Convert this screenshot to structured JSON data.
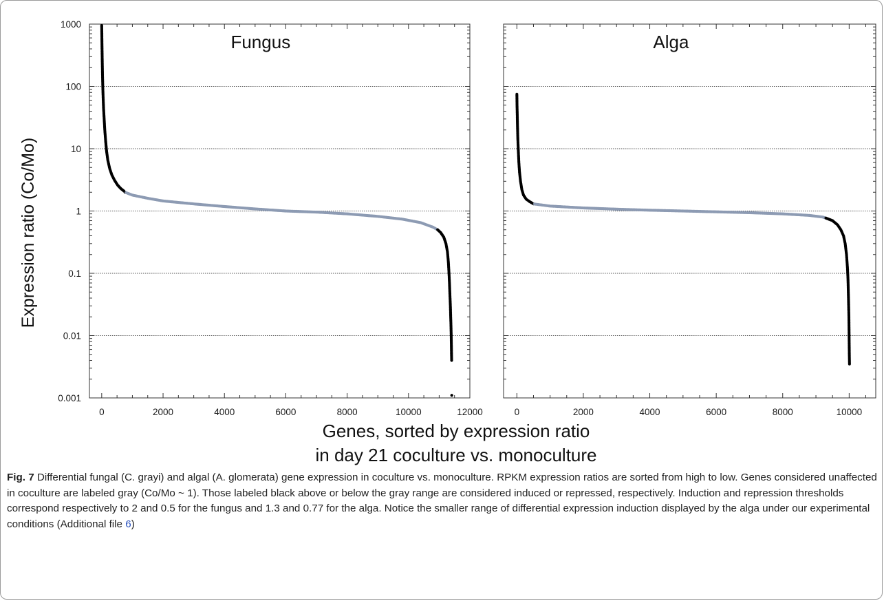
{
  "chart_data": [
    {
      "type": "scatter",
      "title": "Fungus",
      "ylabel": "Expression ratio (Co/Mo)",
      "y_scale": "log",
      "ylim": [
        0.001,
        1000
      ],
      "xlim": [
        -400,
        12000
      ],
      "x_ticks": [
        "0",
        "2000",
        "4000",
        "6000",
        "8000",
        "10000",
        "12000"
      ],
      "y_ticks": [
        "1000",
        "100",
        "10",
        "1",
        "0.1",
        "0.01",
        "0.001"
      ],
      "gridlines_y": [
        100,
        10,
        1,
        0.1,
        0.01
      ],
      "thresholds": {
        "induction": 2,
        "repression": 0.5
      },
      "colors": {
        "induced_repressed": "#000000",
        "unaffected": "#8d9bb3"
      },
      "points": [
        [
          0,
          950
        ],
        [
          5,
          650
        ],
        [
          10,
          420
        ],
        [
          18,
          250
        ],
        [
          25,
          160
        ],
        [
          35,
          100
        ],
        [
          45,
          70
        ],
        [
          60,
          45
        ],
        [
          80,
          30
        ],
        [
          100,
          20
        ],
        [
          130,
          13
        ],
        [
          160,
          9
        ],
        [
          200,
          6.5
        ],
        [
          260,
          4.8
        ],
        [
          330,
          3.8
        ],
        [
          420,
          3.1
        ],
        [
          520,
          2.6
        ],
        [
          620,
          2.3
        ],
        [
          720,
          2.1
        ],
        [
          760,
          2.0
        ],
        [
          1000,
          1.8
        ],
        [
          1500,
          1.6
        ],
        [
          2000,
          1.45
        ],
        [
          3000,
          1.3
        ],
        [
          4000,
          1.18
        ],
        [
          5000,
          1.08
        ],
        [
          6000,
          1.0
        ],
        [
          7000,
          0.96
        ],
        [
          8000,
          0.9
        ],
        [
          9000,
          0.82
        ],
        [
          9800,
          0.74
        ],
        [
          10400,
          0.65
        ],
        [
          10800,
          0.55
        ],
        [
          10950,
          0.5
        ],
        [
          11050,
          0.45
        ],
        [
          11150,
          0.38
        ],
        [
          11220,
          0.3
        ],
        [
          11270,
          0.22
        ],
        [
          11300,
          0.15
        ],
        [
          11320,
          0.1
        ],
        [
          11335,
          0.07
        ],
        [
          11350,
          0.045
        ],
        [
          11365,
          0.03
        ],
        [
          11375,
          0.02
        ],
        [
          11385,
          0.014
        ],
        [
          11392,
          0.01
        ],
        [
          11398,
          0.007
        ],
        [
          11402,
          0.005
        ],
        [
          11406,
          0.004
        ],
        [
          11410,
          0.0011
        ]
      ]
    },
    {
      "type": "scatter",
      "title": "Alga",
      "y_scale": "log",
      "ylim": [
        0.001,
        1000
      ],
      "xlim": [
        -400,
        10800
      ],
      "x_ticks": [
        "0",
        "2000",
        "4000",
        "6000",
        "8000",
        "10000"
      ],
      "gridlines_y": [
        100,
        10,
        1,
        0.1,
        0.01
      ],
      "thresholds": {
        "induction": 1.3,
        "repression": 0.77
      },
      "colors": {
        "induced_repressed": "#000000",
        "unaffected": "#8d9bb3"
      },
      "points": [
        [
          0,
          75
        ],
        [
          5,
          50
        ],
        [
          12,
          35
        ],
        [
          20,
          22
        ],
        [
          30,
          14
        ],
        [
          45,
          9
        ],
        [
          60,
          6
        ],
        [
          80,
          4.2
        ],
        [
          110,
          3
        ],
        [
          150,
          2.2
        ],
        [
          200,
          1.8
        ],
        [
          280,
          1.55
        ],
        [
          380,
          1.42
        ],
        [
          450,
          1.35
        ],
        [
          500,
          1.3
        ],
        [
          1000,
          1.2
        ],
        [
          2000,
          1.12
        ],
        [
          3000,
          1.07
        ],
        [
          4000,
          1.03
        ],
        [
          5000,
          1.0
        ],
        [
          6000,
          0.97
        ],
        [
          7000,
          0.94
        ],
        [
          8000,
          0.9
        ],
        [
          8800,
          0.85
        ],
        [
          9200,
          0.8
        ],
        [
          9300,
          0.77
        ],
        [
          9500,
          0.7
        ],
        [
          9650,
          0.6
        ],
        [
          9750,
          0.5
        ],
        [
          9830,
          0.4
        ],
        [
          9880,
          0.3
        ],
        [
          9920,
          0.2
        ],
        [
          9950,
          0.12
        ],
        [
          9965,
          0.08
        ],
        [
          9975,
          0.05
        ],
        [
          9985,
          0.03
        ],
        [
          9992,
          0.02
        ],
        [
          9997,
          0.012
        ],
        [
          10000,
          0.008
        ],
        [
          10005,
          0.005
        ],
        [
          10010,
          0.0035
        ]
      ]
    }
  ],
  "xlabel_lines": [
    "Genes, sorted by expression ratio",
    "in day 21 coculture vs. monoculture"
  ],
  "caption": {
    "fig_label": "Fig. 7",
    "text": " Differential fungal (C. grayi) and algal (A. glomerata) gene expression in coculture vs. monoculture. RPKM expression ratios are sorted from high to low. Genes considered unaffected in coculture are labeled gray (Co/Mo ~ 1). Those labeled black above or below the gray range are considered induced or repressed, respectively. Induction and repression thresholds correspond respectively to 2 and 0.5 for the fungus and 1.3 and 0.77 for the alga. Notice the smaller range of differential expression induction displayed by the alga under our experimental conditions (Additional file ",
    "link": "6",
    "end": ")"
  }
}
